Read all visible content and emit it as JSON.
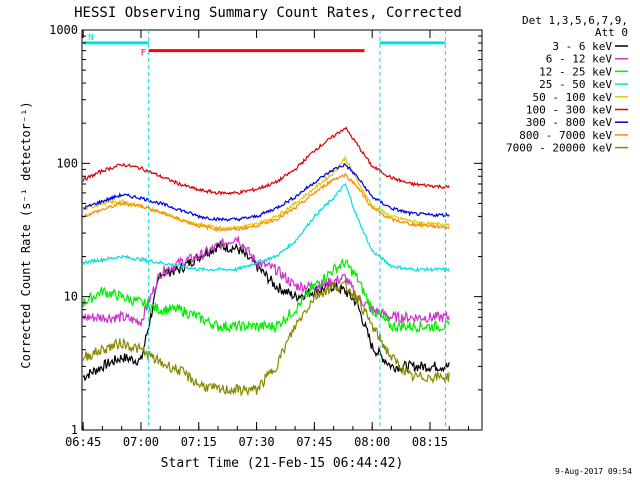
{
  "page": {
    "title": "HESSI Observing Summary Count Rates, Corrected",
    "footer_date": "9-Aug-2017 09:54"
  },
  "chart_data": {
    "type": "line",
    "title": "HESSI Observing Summary Count Rates, Corrected",
    "xlabel": "Start Time (21-Feb-15 06:44:42)",
    "ylabel": "Corrected Count Rate (s⁻¹ detector⁻¹)",
    "yscale": "log",
    "ylim": [
      1,
      1000
    ],
    "xlim": [
      "06:45",
      "08:25"
    ],
    "x_ticks": [
      "06:45",
      "07:00",
      "07:15",
      "07:30",
      "07:45",
      "08:00",
      "08:15"
    ],
    "y_ticks": [
      "1",
      "10",
      "100",
      "1000"
    ],
    "legend_header": [
      "Det 1,3,5,6,7,9,",
      "Att 0"
    ],
    "legend_position": "right",
    "x": [
      "06:45",
      "06:50",
      "06:55",
      "07:00",
      "07:05",
      "07:10",
      "07:15",
      "07:20",
      "07:25",
      "07:30",
      "07:35",
      "07:40",
      "07:45",
      "07:50",
      "07:53",
      "07:56",
      "08:00",
      "08:05",
      "08:10",
      "08:15",
      "08:20"
    ],
    "series": [
      {
        "name": "3 - 6 keV",
        "color": "#000000",
        "values": [
          2.5,
          3.0,
          3.5,
          3.3,
          15,
          16,
          20,
          24,
          23,
          17,
          12,
          10,
          11,
          12,
          11,
          9,
          4.2,
          3.0,
          3.0,
          3.0,
          3.0
        ]
      },
      {
        "name": "6 - 12 keV",
        "color": "#cc33cc",
        "values": [
          7,
          7,
          7,
          6.5,
          15,
          18,
          20,
          24,
          28,
          18,
          16,
          12,
          12,
          13,
          14,
          10,
          8,
          7,
          7,
          7,
          7
        ]
      },
      {
        "name": "12 - 25 keV",
        "color": "#00ee00",
        "values": [
          9,
          11,
          10,
          9,
          8,
          8,
          7,
          6,
          6,
          6,
          6,
          8,
          12,
          16,
          18,
          14,
          8,
          6,
          6,
          6,
          6
        ]
      },
      {
        "name": "25 - 50 keV",
        "color": "#00e0e0",
        "values": [
          18,
          19,
          20,
          19,
          18,
          17,
          16,
          16,
          16,
          18,
          20,
          26,
          40,
          55,
          70,
          40,
          22,
          17,
          16,
          16,
          16
        ]
      },
      {
        "name": "50 - 100 keV",
        "color": "#ddcc00",
        "values": [
          45,
          50,
          52,
          48,
          43,
          38,
          35,
          33,
          33,
          35,
          40,
          50,
          65,
          85,
          110,
          75,
          48,
          40,
          37,
          35,
          35
        ]
      },
      {
        "name": "100 - 300 keV",
        "color": "#dd0000",
        "values": [
          75,
          88,
          98,
          92,
          80,
          70,
          63,
          60,
          60,
          64,
          72,
          90,
          125,
          160,
          185,
          140,
          95,
          78,
          70,
          68,
          66
        ]
      },
      {
        "name": "300 - 800 keV",
        "color": "#0000dd",
        "values": [
          46,
          52,
          58,
          55,
          50,
          45,
          40,
          38,
          38,
          40,
          46,
          56,
          72,
          90,
          98,
          80,
          56,
          46,
          42,
          41,
          41
        ]
      },
      {
        "name": "800 - 7000 keV",
        "color": "#ff8800",
        "values": [
          40,
          45,
          50,
          48,
          43,
          38,
          34,
          32,
          32,
          34,
          38,
          46,
          60,
          76,
          82,
          68,
          46,
          38,
          35,
          34,
          33
        ]
      },
      {
        "name": "7000 - 20000 keV",
        "color": "#888800",
        "values": [
          3.5,
          4.0,
          4.5,
          4.0,
          3.2,
          2.8,
          2.2,
          2.0,
          2.0,
          2.0,
          3.0,
          6,
          10,
          12,
          12,
          10,
          6,
          3.5,
          2.5,
          2.5,
          2.5
        ]
      }
    ],
    "annotations": [
      {
        "label": "F",
        "color": "#ff0000",
        "start": "07:02",
        "end": "07:58",
        "y": 700
      },
      {
        "label": "N",
        "color": "#00e0e0",
        "start": "06:45",
        "end": "07:02",
        "y": 800
      },
      {
        "label": "",
        "color": "#00e0e0",
        "start": "08:02",
        "end": "08:19",
        "y": 800
      }
    ],
    "vlines": {
      "color": "#00e0e0",
      "x": [
        "07:02",
        "08:02",
        "08:19"
      ]
    }
  }
}
